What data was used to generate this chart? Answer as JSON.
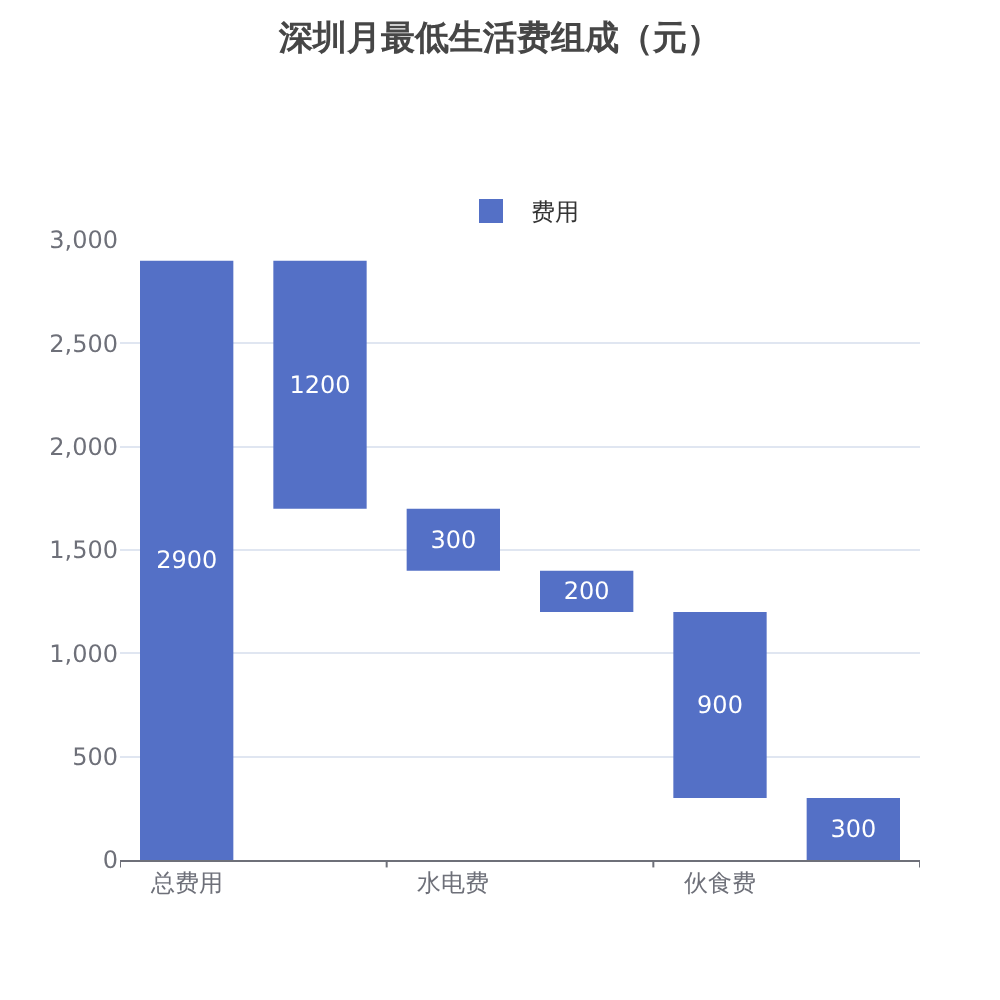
{
  "chart_data": {
    "type": "bar",
    "title": "深圳月最低生活费组成（元）",
    "categories": [
      "总费用",
      null,
      "水电费",
      null,
      "伙食费",
      null
    ],
    "series": [
      {
        "name": "费用",
        "color": "#5470c6",
        "values": [
          2900,
          1200,
          300,
          200,
          900,
          300
        ],
        "base": [
          0,
          1700,
          1400,
          1200,
          300,
          0
        ]
      }
    ],
    "ylim": [
      0,
      3000
    ],
    "yticks": [
      0,
      {
        "value": 500,
        "label": "500"
      },
      {
        "value": 1000,
        "label": "1,000"
      },
      {
        "value": 1500,
        "label": "1,500"
      },
      {
        "value": 2000,
        "label": "2,000"
      },
      {
        "value": 2500,
        "label": "2,500"
      },
      {
        "value": 3000,
        "label": "3,000"
      }
    ],
    "grid": "y",
    "legend": "top",
    "data_labels": true
  }
}
